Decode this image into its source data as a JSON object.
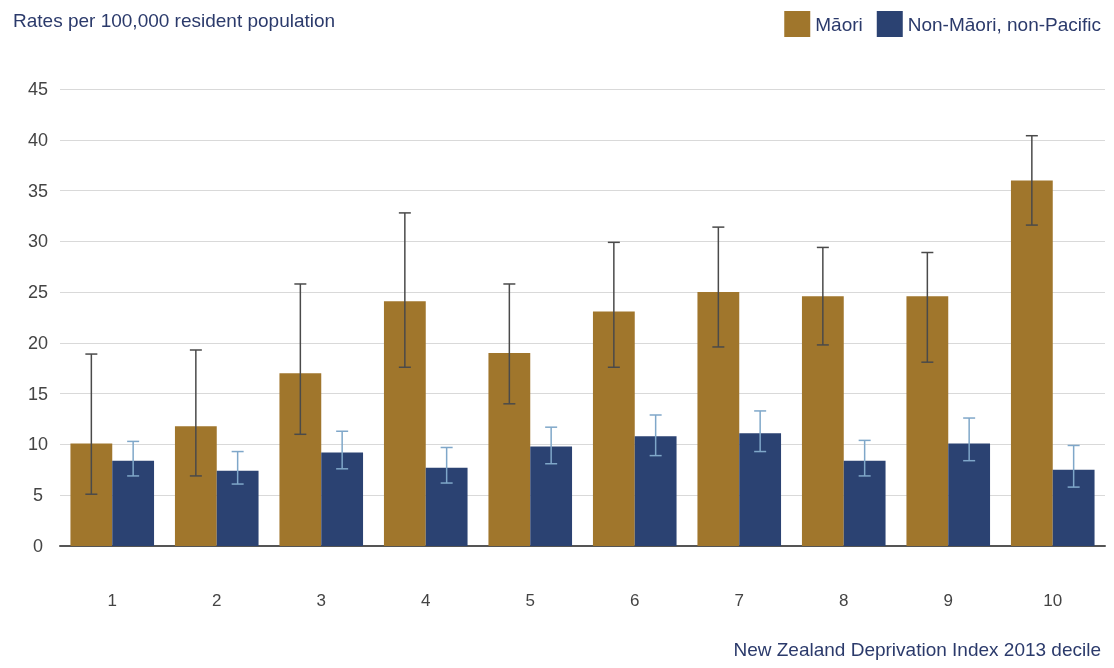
{
  "chart_data": {
    "type": "bar",
    "ylabel": "Rates per 100,000 resident population",
    "xlabel": "New Zealand Deprivation Index 2013 decile",
    "categories": [
      "1",
      "2",
      "3",
      "4",
      "5",
      "6",
      "7",
      "8",
      "9",
      "10"
    ],
    "series": [
      {
        "name": "Māori",
        "color": "#a0762c",
        "values": [
          10.1,
          11.8,
          17.0,
          24.1,
          19.0,
          23.1,
          25.0,
          24.6,
          24.6,
          36.0
        ],
        "errors": [
          [
            5.1,
            18.9
          ],
          [
            6.9,
            19.3
          ],
          [
            11.0,
            25.8
          ],
          [
            17.6,
            32.8
          ],
          [
            14.0,
            25.8
          ],
          [
            17.6,
            29.9
          ],
          [
            19.6,
            31.4
          ],
          [
            19.8,
            29.4
          ],
          [
            18.1,
            28.9
          ],
          [
            31.6,
            40.4
          ]
        ]
      },
      {
        "name": "Non-Māori, non-Pacific",
        "color": "#2b4272",
        "values": [
          8.4,
          7.4,
          9.2,
          7.7,
          9.8,
          10.8,
          11.1,
          8.4,
          10.1,
          7.5
        ],
        "errors": [
          [
            6.9,
            10.3
          ],
          [
            6.1,
            9.3
          ],
          [
            7.6,
            11.3
          ],
          [
            6.2,
            9.7
          ],
          [
            8.1,
            11.7
          ],
          [
            8.9,
            12.9
          ],
          [
            9.3,
            13.3
          ],
          [
            6.9,
            10.4
          ],
          [
            8.4,
            12.6
          ],
          [
            5.8,
            9.9
          ]
        ]
      }
    ],
    "ylim": [
      0,
      45
    ],
    "yticks": [
      0,
      5,
      10,
      15,
      20,
      25,
      30,
      35,
      40,
      45
    ],
    "grid": "y",
    "legend": "top right"
  }
}
